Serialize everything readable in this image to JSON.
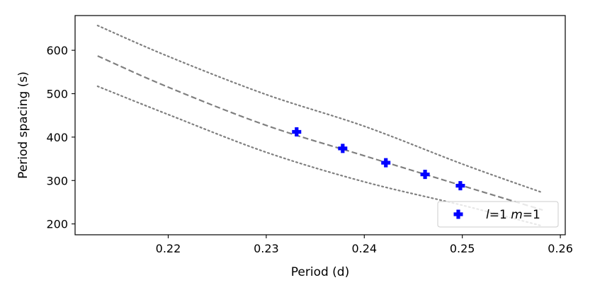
{
  "chart_data": {
    "type": "scatter",
    "xlabel": "Period (d)",
    "ylabel": "Period spacing (s)",
    "xlim": [
      0.2105,
      0.2605
    ],
    "ylim": [
      175,
      680
    ],
    "x_ticks": [
      0.22,
      0.23,
      0.24,
      0.25,
      0.26
    ],
    "x_tick_labels": [
      "0.22",
      "0.23",
      "0.24",
      "0.25",
      "0.26"
    ],
    "y_ticks": [
      200,
      300,
      400,
      500,
      600
    ],
    "y_tick_labels": [
      "200",
      "300",
      "400",
      "500",
      "600"
    ],
    "grid": false,
    "legend_position": "bottom-right",
    "series": [
      {
        "name": "l=1 m=1",
        "legend": {
          "l_symbol": "l",
          "eq1": "=1 ",
          "m_symbol": "m",
          "eq2": "=1"
        },
        "kind": "scatter",
        "marker": "plus-filled",
        "color": "#0000ff",
        "x": [
          0.2331,
          0.2378,
          0.2422,
          0.2462,
          0.2498
        ],
        "y": [
          412,
          374,
          341,
          314,
          288
        ]
      },
      {
        "kind": "line",
        "style": "dashed",
        "color": "#808080",
        "x": [
          0.2128,
          0.22,
          0.23,
          0.24,
          0.25,
          0.2582
        ],
        "y": [
          587,
          515,
          427,
          357,
          288,
          232
        ]
      },
      {
        "kind": "line",
        "style": "dotted",
        "color": "#808080",
        "x": [
          0.2128,
          0.22,
          0.23,
          0.24,
          0.25,
          0.2582
        ],
        "y": [
          657,
          586,
          498,
          425,
          338,
          272
        ]
      },
      {
        "kind": "line",
        "style": "dotted",
        "color": "#808080",
        "x": [
          0.2128,
          0.22,
          0.23,
          0.24,
          0.25,
          0.2582
        ],
        "y": [
          517,
          452,
          365,
          297,
          243,
          195
        ]
      }
    ]
  }
}
